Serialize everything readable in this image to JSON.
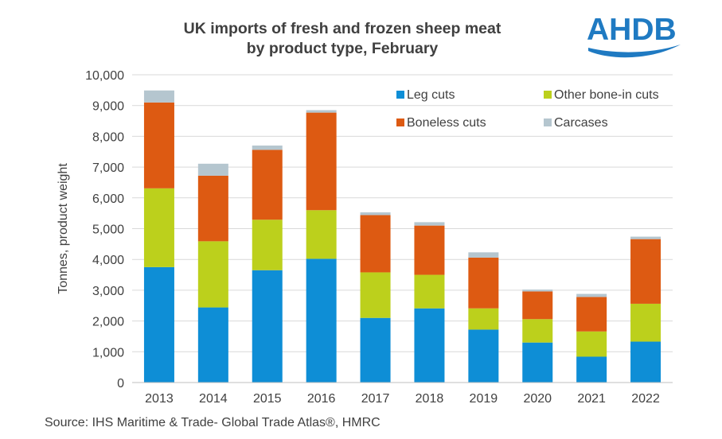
{
  "title_lines": [
    "UK imports of fresh and frozen sheep meat",
    "by product type, February"
  ],
  "logo": {
    "text": "AHDB",
    "color": "#1f7ac2"
  },
  "source": "Source: IHS Maritime & Trade- Global Trade Atlas®, HMRC",
  "chart_data": {
    "type": "bar",
    "stacked": true,
    "categories": [
      "2013",
      "2014",
      "2015",
      "2016",
      "2017",
      "2018",
      "2019",
      "2020",
      "2021",
      "2022"
    ],
    "series": [
      {
        "name": "Leg cuts",
        "color": "#0e8ed6",
        "values": [
          3750,
          2440,
          3650,
          4020,
          2100,
          2410,
          1720,
          1300,
          840,
          1330
        ]
      },
      {
        "name": "Other bone-in cuts",
        "color": "#bcd01c",
        "values": [
          2560,
          2150,
          1640,
          1580,
          1480,
          1090,
          690,
          760,
          820,
          1230
        ]
      },
      {
        "name": "Boneless cuts",
        "color": "#dd5a12",
        "values": [
          2790,
          2130,
          2270,
          3170,
          1860,
          1600,
          1650,
          900,
          1120,
          2100
        ]
      },
      {
        "name": "Carcases",
        "color": "#b5c6cf",
        "values": [
          390,
          390,
          140,
          80,
          90,
          110,
          170,
          60,
          100,
          80
        ]
      }
    ],
    "ylabel": "Tonnes, product weight",
    "xlabel": "",
    "ylim": [
      0,
      10000
    ],
    "yticks": [
      0,
      1000,
      2000,
      3000,
      4000,
      5000,
      6000,
      7000,
      8000,
      9000,
      10000
    ],
    "ytick_labels": [
      "0",
      "1,000",
      "2,000",
      "3,000",
      "4,000",
      "5,000",
      "6,000",
      "7,000",
      "8,000",
      "9,000",
      "10,000"
    ],
    "grid": true,
    "legend_position": "top-right",
    "legend_order": [
      "Leg cuts",
      "Other bone-in cuts",
      "Boneless cuts",
      "Carcases"
    ]
  }
}
